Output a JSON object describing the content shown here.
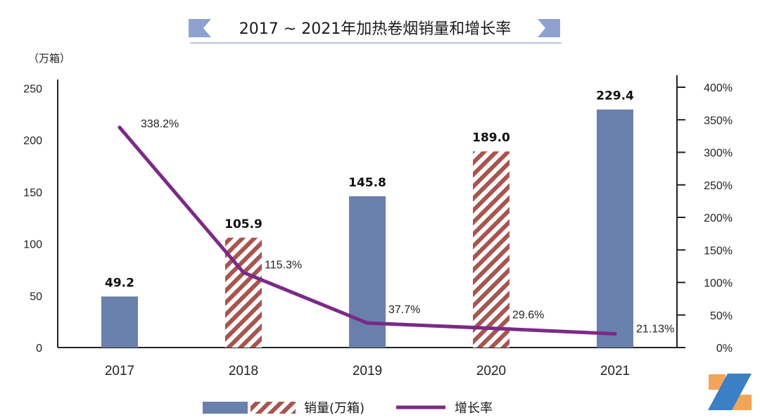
{
  "chart_data": {
    "type": "bar+line",
    "title": "2017 ~ 2021年加热卷烟销量和增长率",
    "left_axis_unit": "（万箱）",
    "categories": [
      "2017",
      "2018",
      "2019",
      "2020",
      "2021"
    ],
    "y_left_lim": [
      0,
      250
    ],
    "y_left_ticks": [
      "0",
      "50",
      "100",
      "150",
      "200",
      "250"
    ],
    "y_right_lim": [
      0,
      400
    ],
    "y_right_ticks": [
      "0%",
      "50%",
      "100%",
      "150%",
      "200%",
      "250%",
      "300%",
      "350%",
      "400%"
    ],
    "series": [
      {
        "name": "销量(万箱)",
        "type": "bar",
        "axis": "left",
        "values": [
          49.2,
          105.9,
          145.8,
          189.0,
          229.4
        ],
        "labels": [
          "49.2",
          "105.9",
          "145.8",
          "189.0",
          "229.4"
        ],
        "styles": [
          "solid",
          "hatched",
          "solid",
          "hatched",
          "solid"
        ]
      },
      {
        "name": "增长率",
        "type": "line",
        "axis": "right",
        "values": [
          338.2,
          115.3,
          37.7,
          29.6,
          21.13
        ],
        "labels": [
          "338.2%",
          "115.3%",
          "37.7%",
          "29.6%",
          "21.13%"
        ]
      }
    ],
    "colors": {
      "bar_solid": "#6a80ac",
      "bar_hatch": "#a7554f",
      "line": "#7b2a86",
      "title_flag": "#8da2cf"
    },
    "grid": false,
    "legend_position": "bottom"
  }
}
